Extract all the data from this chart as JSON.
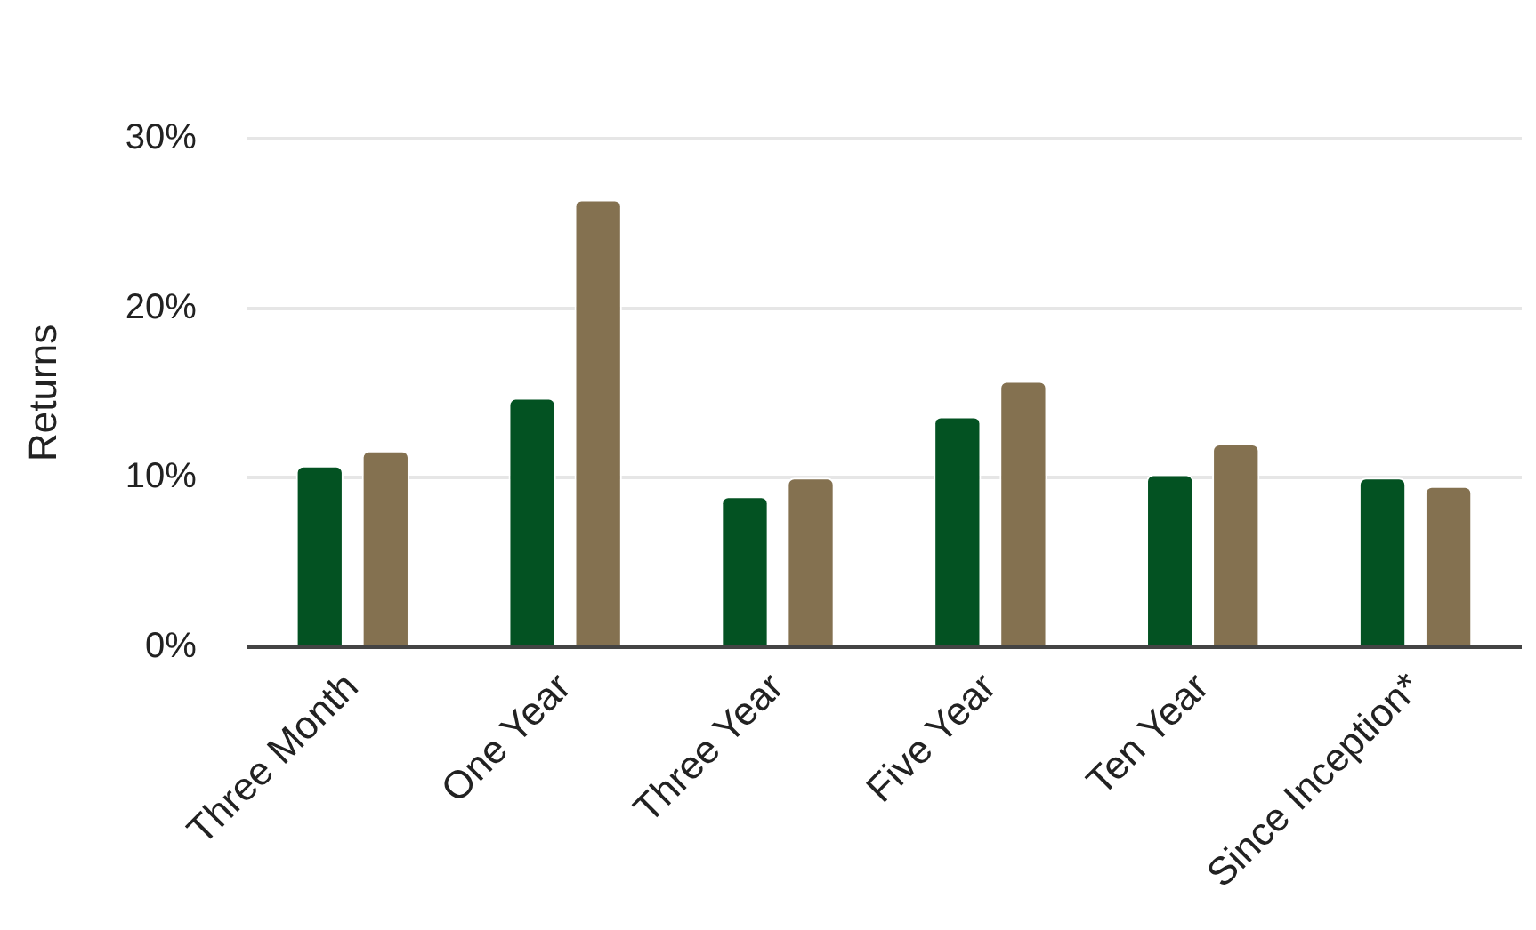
{
  "chart_data": {
    "type": "bar",
    "ylabel": "Returns",
    "categories": [
      "Three Month",
      "One Year",
      "Three Year",
      "Five Year",
      "Ten Year",
      "Since Inception*"
    ],
    "series": [
      {
        "color": "#035222",
        "values": [
          10.7,
          14.7,
          8.9,
          13.6,
          10.2,
          10.0
        ]
      },
      {
        "color": "#847150",
        "values": [
          11.6,
          26.4,
          10.0,
          15.7,
          12.0,
          9.5
        ]
      }
    ],
    "ylim": [
      0,
      30
    ],
    "yticks": [
      {
        "value": 0,
        "label": "0%"
      },
      {
        "value": 10,
        "label": "10%"
      },
      {
        "value": 20,
        "label": "20%"
      },
      {
        "value": 30,
        "label": "30%"
      }
    ],
    "grid": "y"
  }
}
